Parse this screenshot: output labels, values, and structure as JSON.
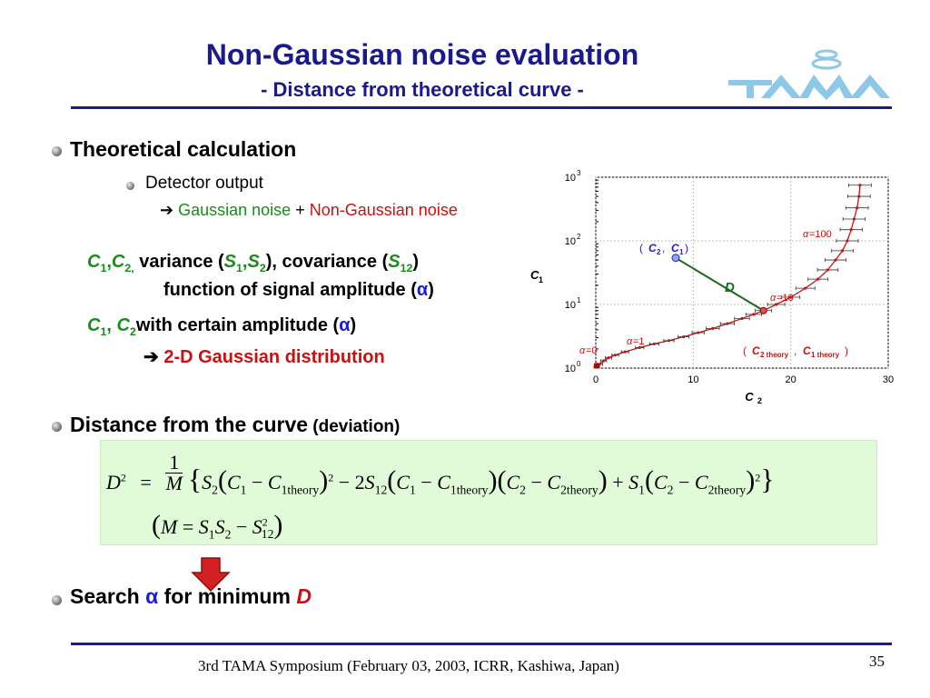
{
  "header": {
    "title": "Non-Gaussian noise evaluation",
    "subtitle": "- Distance from theoretical curve -",
    "logo_text": "TAMA"
  },
  "section1": {
    "heading": "Theoretical calculation",
    "sub_heading": "Detector output",
    "arrow": "➔",
    "gaussian": "Gaussian noise",
    "plus": "+",
    "non_gaussian": "Non-Gaussian noise"
  },
  "line_var": {
    "c1": "C",
    "c1_sub": "1",
    "comma": ",",
    "c2": "C",
    "c2_sub": "2,",
    "variance_text": " variance (",
    "s1": "S",
    "s1_sub": "1",
    "s2": "S",
    "s2_sub": "2",
    "covariance_text": "), covariance (",
    "s12": "S",
    "s12_sub": "12",
    "close": ")"
  },
  "line_func": {
    "text": "function of signal amplitude (",
    "alpha": "α",
    "close": ")"
  },
  "line_amp": {
    "c1": "C",
    "c1_sub": "1",
    "comma": ", ",
    "c2": "C",
    "c2_sub": "2",
    "text": "with certain amplitude (",
    "alpha": "α",
    "close": ")"
  },
  "line_dist": {
    "arrow": "➔",
    "text": "2-D Gaussian distribution"
  },
  "section2": {
    "heading": "Distance from the curve",
    "heading_small": " (deviation)"
  },
  "equation": {
    "d2": "D",
    "sq": "2",
    "eq": "=",
    "num": "1",
    "den": "M",
    "s2": "S",
    "s2_sub": "2",
    "c1": "C",
    "c1_sub": "1",
    "minus": "−",
    "c1t": "C",
    "c1t_sub": "1theory",
    "two": "2",
    "s12": "S",
    "s12_sub": "12",
    "c2": "C",
    "c2_sub": "2",
    "c2t": "C",
    "c2t_sub": "2theory",
    "plus": "+",
    "s1": "S",
    "s1_sub": "1",
    "m_def_m": "M",
    "m_def_eq": "=",
    "m_def_s1": "S",
    "m_def_s1_sub": "1",
    "m_def_s2": "S",
    "m_def_s2_sub": "2",
    "m_def_minus": "−",
    "m_def_s12": "S",
    "m_def_s12_sub": "12"
  },
  "section3": {
    "search": "Search ",
    "alpha": "α",
    "for_min": " for minimum ",
    "d": "D"
  },
  "footer": {
    "text": "3rd TAMA Symposium (February 03, 2003, ICRR, Kashiwa, Japan)",
    "page": "35"
  },
  "colors": {
    "title": "#1a1a8c",
    "green": "#1a8c1a",
    "red": "#cc1010",
    "curve": "#c01818",
    "eq_bg": "#e1fbd9",
    "arrow": "#d42020"
  },
  "chart_data": {
    "type": "line",
    "xlabel": "C",
    "xlabel_sub": "2",
    "ylabel": "C",
    "ylabel_sub": "1",
    "x_ticks": [
      "0",
      "10",
      "20",
      "30"
    ],
    "y_ticks": [
      {
        "base": "10",
        "exp": "0",
        "value": 1
      },
      {
        "base": "10",
        "exp": "1",
        "value": 10
      },
      {
        "base": "10",
        "exp": "2",
        "value": 100
      },
      {
        "base": "10",
        "exp": "3",
        "value": 1000
      }
    ],
    "xlim": [
      0,
      30
    ],
    "ylim": [
      1,
      1000
    ],
    "y_scale": "log",
    "grid": true,
    "series": [
      {
        "x": [
          0.1,
          0.4,
          0.8,
          1.3,
          2,
          3,
          4.5,
          6,
          7.5,
          9,
          10.5,
          12,
          13.5,
          15,
          16.2,
          17.2,
          18.5,
          20,
          21.5,
          22.8,
          23.8,
          24.6,
          25.3,
          25.8,
          26.2,
          26.5,
          26.8,
          27.0,
          27.1
        ],
        "y": [
          1.05,
          1.15,
          1.3,
          1.45,
          1.6,
          1.8,
          2.1,
          2.4,
          2.7,
          3.1,
          3.6,
          4.2,
          5.0,
          6.0,
          7.0,
          8.0,
          10.0,
          13.0,
          18.0,
          25.0,
          35.0,
          50.0,
          70.0,
          100.0,
          150.0,
          220.0,
          330.0,
          500.0,
          750.0
        ]
      }
    ],
    "markers": [
      {
        "x": 0.1,
        "y": 1.05
      },
      {
        "x": 17.2,
        "y": 8.0
      }
    ],
    "observed_point": {
      "x": 8.2,
      "y": 54.0
    },
    "annotations": {
      "alpha0": {
        "greek": "α",
        "text": " =0"
      },
      "alpha1": {
        "greek": "α",
        "text": " =1"
      },
      "alpha10": {
        "greek": "α",
        "text": " =10"
      },
      "alpha100": {
        "greek": "α",
        "text": " =100"
      },
      "point_label": {
        "open": "( ",
        "c2": "C",
        "c2_sub": "2",
        "comma": " ,",
        "c1": "C",
        "c1_sub": "1",
        "close": " )"
      },
      "theory_label": {
        "open": "( ",
        "c2": "C",
        "c2_sub": "2 theory",
        "comma": " ,",
        "c1": "C",
        "c1_sub": "1 theory",
        "close": " )"
      },
      "d_label": "D"
    }
  }
}
